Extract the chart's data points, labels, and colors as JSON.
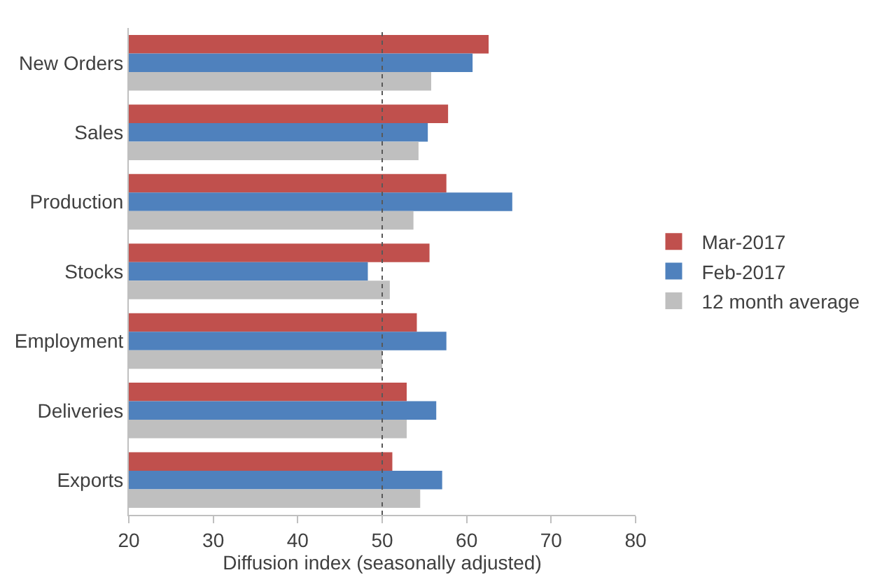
{
  "chart_data": {
    "type": "bar",
    "orientation": "horizontal",
    "xlabel": "Diffusion index (seasonally adjusted)",
    "categories": [
      "New Orders",
      "Sales",
      "Production",
      "Stocks",
      "Employment",
      "Deliveries",
      "Exports"
    ],
    "series": [
      {
        "name": "Mar-2017",
        "color": "#c0504d",
        "values": [
          62.6,
          57.8,
          57.6,
          55.6,
          54.1,
          52.9,
          51.2
        ]
      },
      {
        "name": "Feb-2017",
        "color": "#4f81bd",
        "values": [
          60.7,
          55.4,
          65.4,
          48.3,
          57.6,
          56.4,
          57.1
        ]
      },
      {
        "name": "12 month average",
        "color": "#bfbfbf",
        "values": [
          55.8,
          54.3,
          53.7,
          50.9,
          50.0,
          52.9,
          54.5
        ]
      }
    ],
    "xlim": [
      20,
      80
    ],
    "xticks": [
      20,
      30,
      40,
      50,
      60,
      70,
      80
    ],
    "ref_lines": [
      {
        "axis": "x",
        "value": 50,
        "color": "#595959",
        "line_style": "dotted"
      }
    ],
    "grid": false,
    "legend": "right"
  }
}
